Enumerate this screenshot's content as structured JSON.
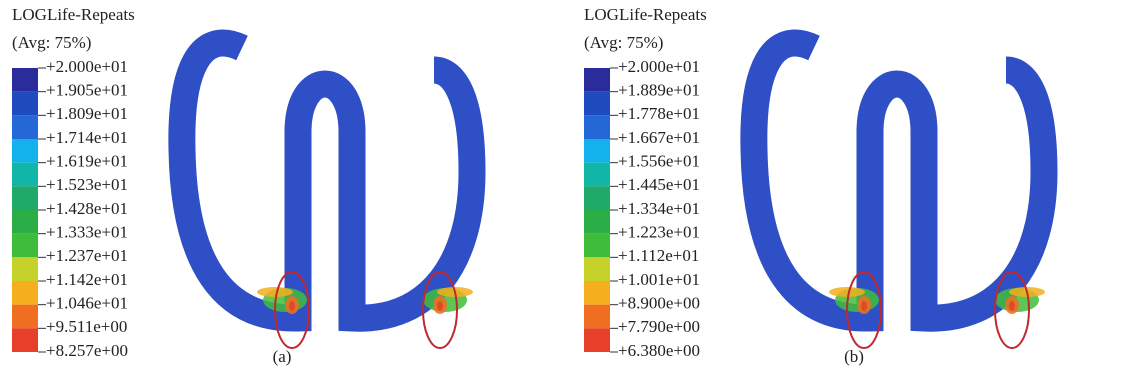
{
  "panels": [
    {
      "title": "LOGLife-Repeats",
      "subtitle": "(Avg: 75%)",
      "legend_labels": [
        "+2.000e+01",
        "+1.905e+01",
        "+1.809e+01",
        "+1.714e+01",
        "+1.619e+01",
        "+1.523e+01",
        "+1.428e+01",
        "+1.333e+01",
        "+1.237e+01",
        "+1.142e+01",
        "+1.046e+01",
        "+9.511e+00",
        "+8.257e+00"
      ],
      "legend_colors": [
        "#2a2c9c",
        "#1e4cbf",
        "#2468d8",
        "#14b2ec",
        "#12b6a6",
        "#1faa6a",
        "#2bae45",
        "#3fbd3a",
        "#c6d22a",
        "#f4ae1e",
        "#ef6e22",
        "#e6402b"
      ],
      "caption": "(a)"
    },
    {
      "title": "LOGLife-Repeats",
      "subtitle": "(Avg: 75%)",
      "legend_labels": [
        "+2.000e+01",
        "+1.889e+01",
        "+1.778e+01",
        "+1.667e+01",
        "+1.556e+01",
        "+1.445e+01",
        "+1.334e+01",
        "+1.223e+01",
        "+1.112e+01",
        "+1.001e+01",
        "+8.900e+00",
        "+7.790e+00",
        "+6.380e+00"
      ],
      "legend_colors": [
        "#2a2c9c",
        "#1e4cbf",
        "#2468d8",
        "#14b2ec",
        "#12b6a6",
        "#1faa6a",
        "#2bae45",
        "#3fbd3a",
        "#c6d22a",
        "#f4ae1e",
        "#ef6e22",
        "#e6402b"
      ],
      "caption": "(b)"
    }
  ]
}
